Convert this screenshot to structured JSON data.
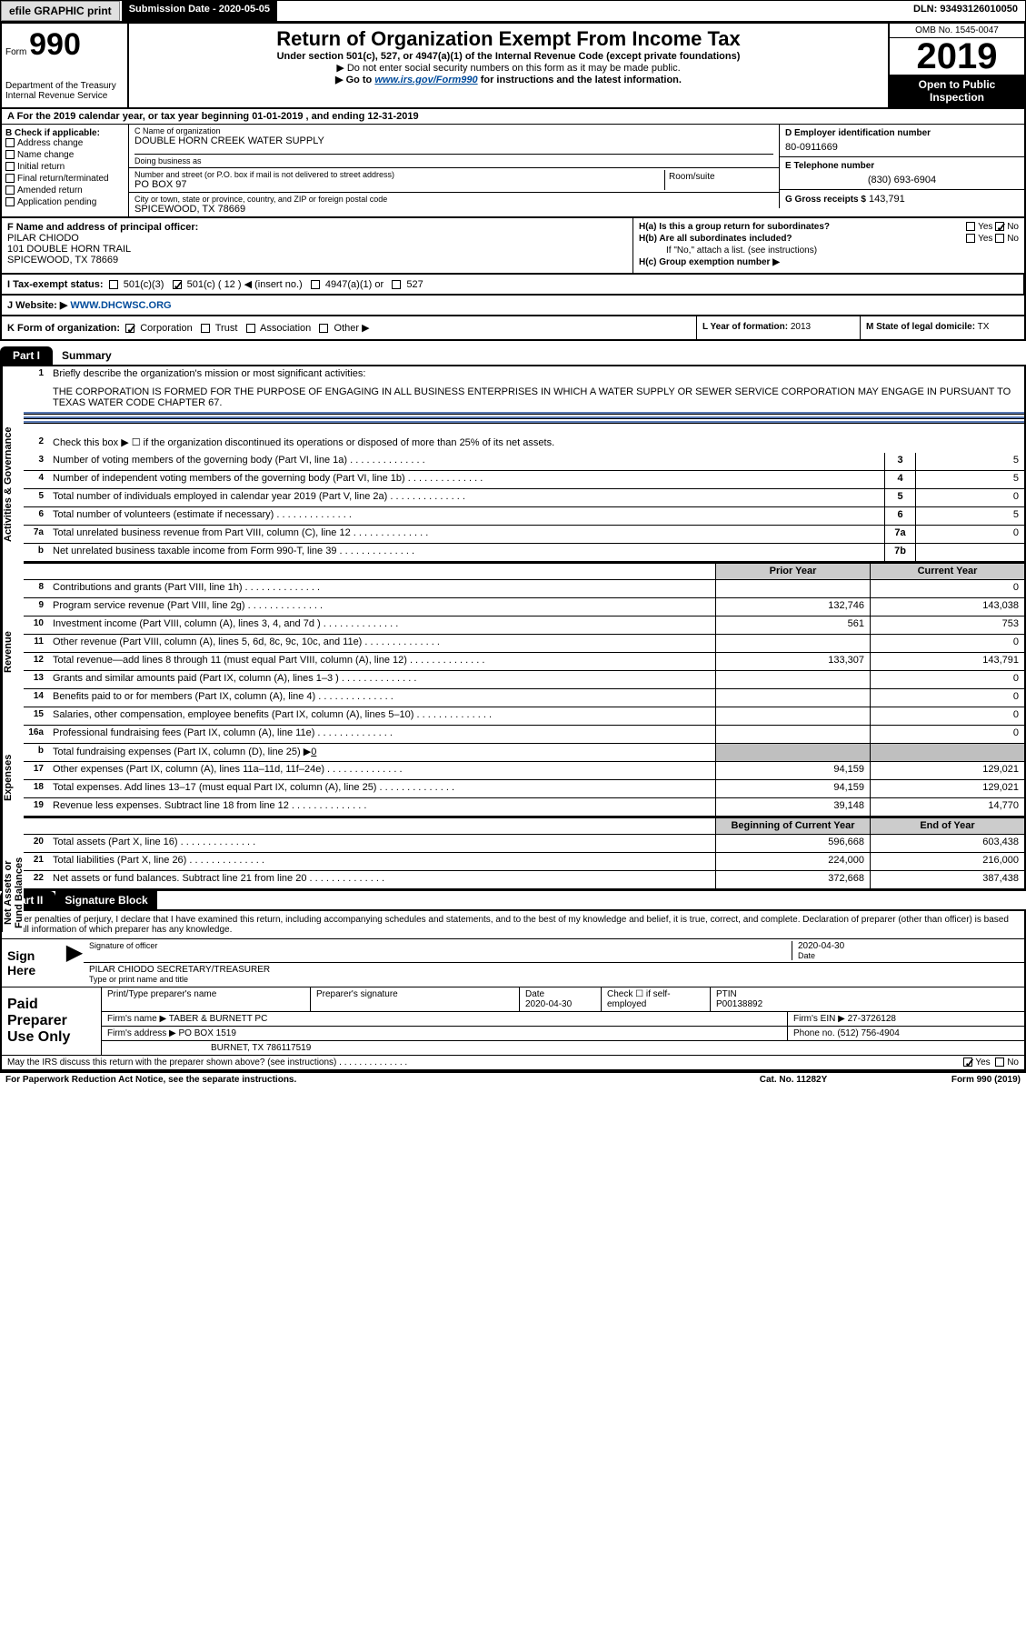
{
  "topbar": {
    "efile_btn": "efile GRAPHIC print",
    "submission_label": "Submission Date - 2020-05-05",
    "dln": "DLN: 93493126010050"
  },
  "header": {
    "form_word": "Form",
    "form_num": "990",
    "dept": "Department of the Treasury\nInternal Revenue Service",
    "title": "Return of Organization Exempt From Income Tax",
    "sub1": "Under section 501(c), 527, or 4947(a)(1) of the Internal Revenue Code (except private foundations)",
    "sub2": "▶ Do not enter social security numbers on this form as it may be made public.",
    "sub3_pre": "▶ Go to ",
    "sub3_link": "www.irs.gov/Form990",
    "sub3_post": " for instructions and the latest information.",
    "omb": "OMB No. 1545-0047",
    "year": "2019",
    "open": "Open to Public Inspection"
  },
  "a_row": "A For the 2019 calendar year, or tax year beginning 01-01-2019    , and ending 12-31-2019",
  "b": {
    "hdr": "B Check if applicable:",
    "opts": [
      "Address change",
      "Name change",
      "Initial return",
      "Final return/terminated",
      "Amended return",
      "Application pending"
    ]
  },
  "c": {
    "name_lbl": "C Name of organization",
    "name_val": "DOUBLE HORN CREEK WATER SUPPLY",
    "dba_lbl": "Doing business as",
    "street_lbl": "Number and street (or P.O. box if mail is not delivered to street address)",
    "street_val": "PO BOX 97",
    "room_lbl": "Room/suite",
    "city_lbl": "City or town, state or province, country, and ZIP or foreign postal code",
    "city_val": "SPICEWOOD, TX  78669"
  },
  "d": {
    "lbl": "D Employer identification number",
    "val": "80-0911669"
  },
  "e": {
    "lbl": "E Telephone number",
    "val": "(830) 693-6904"
  },
  "g": {
    "lbl": "G Gross receipts $",
    "val": "143,791"
  },
  "f": {
    "lbl": "F  Name and address of principal officer:",
    "name": "PILAR CHIODO",
    "addr1": "101 DOUBLE HORN TRAIL",
    "addr2": "SPICEWOOD, TX  78669"
  },
  "h": {
    "a_lbl": "H(a)  Is this a group return for subordinates?",
    "b_lbl": "H(b)  Are all subordinates included?",
    "note": "If \"No,\" attach a list. (see instructions)",
    "c_lbl": "H(c)  Group exemption number ▶",
    "yes": "Yes",
    "no": "No"
  },
  "i": {
    "lbl": "I   Tax-exempt status:",
    "o1": "501(c)(3)",
    "o2": "501(c) ( 12 ) ◀ (insert no.)",
    "o3": "4947(a)(1) or",
    "o4": "527"
  },
  "j": {
    "lbl": "J   Website: ▶",
    "val": "WWW.DHCWSC.ORG"
  },
  "k": {
    "lbl": "K Form of organization:",
    "o1": "Corporation",
    "o2": "Trust",
    "o3": "Association",
    "o4": "Other ▶"
  },
  "l": {
    "lbl": "L Year of formation:",
    "val": "2013"
  },
  "m": {
    "lbl": "M State of legal domicile:",
    "val": "TX"
  },
  "part1": {
    "tab": "Part I",
    "title": "Summary",
    "side_ag": "Activities & Governance",
    "side_rev": "Revenue",
    "side_exp": "Expenses",
    "side_net": "Net Assets or Fund Balances",
    "q1": "Briefly describe the organization's mission or most significant activities:",
    "q1_val": "THE CORPORATION IS FORMED FOR THE PURPOSE OF ENGAGING IN ALL BUSINESS ENTERPRISES IN WHICH A WATER SUPPLY OR SEWER SERVICE CORPORATION MAY ENGAGE IN PURSUANT TO TEXAS WATER CODE CHAPTER 67.",
    "q2": "Check this box ▶ ☐ if the organization discontinued its operations or disposed of more than 25% of its net assets.",
    "rows_numbered": [
      {
        "n": "3",
        "t": "Number of voting members of the governing body (Part VI, line 1a)",
        "box": "3",
        "v": "5"
      },
      {
        "n": "4",
        "t": "Number of independent voting members of the governing body (Part VI, line 1b)",
        "box": "4",
        "v": "5"
      },
      {
        "n": "5",
        "t": "Total number of individuals employed in calendar year 2019 (Part V, line 2a)",
        "box": "5",
        "v": "0"
      },
      {
        "n": "6",
        "t": "Total number of volunteers (estimate if necessary)",
        "box": "6",
        "v": "5"
      },
      {
        "n": "7a",
        "t": "Total unrelated business revenue from Part VIII, column (C), line 12",
        "box": "7a",
        "v": "0"
      },
      {
        "n": "b",
        "t": "Net unrelated business taxable income from Form 990-T, line 39",
        "box": "7b",
        "v": ""
      }
    ],
    "prior_hdr": "Prior Year",
    "curr_hdr": "Current Year",
    "rev_rows": [
      {
        "n": "8",
        "t": "Contributions and grants (Part VIII, line 1h)",
        "p": "",
        "c": "0"
      },
      {
        "n": "9",
        "t": "Program service revenue (Part VIII, line 2g)",
        "p": "132,746",
        "c": "143,038"
      },
      {
        "n": "10",
        "t": "Investment income (Part VIII, column (A), lines 3, 4, and 7d )",
        "p": "561",
        "c": "753"
      },
      {
        "n": "11",
        "t": "Other revenue (Part VIII, column (A), lines 5, 6d, 8c, 9c, 10c, and 11e)",
        "p": "",
        "c": "0"
      },
      {
        "n": "12",
        "t": "Total revenue—add lines 8 through 11 (must equal Part VIII, column (A), line 12)",
        "p": "133,307",
        "c": "143,791"
      }
    ],
    "exp_rows": [
      {
        "n": "13",
        "t": "Grants and similar amounts paid (Part IX, column (A), lines 1–3 )",
        "p": "",
        "c": "0"
      },
      {
        "n": "14",
        "t": "Benefits paid to or for members (Part IX, column (A), line 4)",
        "p": "",
        "c": "0"
      },
      {
        "n": "15",
        "t": "Salaries, other compensation, employee benefits (Part IX, column (A), lines 5–10)",
        "p": "",
        "c": "0"
      },
      {
        "n": "16a",
        "t": "Professional fundraising fees (Part IX, column (A), line 11e)",
        "p": "",
        "c": "0"
      }
    ],
    "exp_b": {
      "n": "b",
      "t_pre": "Total fundraising expenses (Part IX, column (D), line 25) ▶",
      "t_val": "0"
    },
    "exp_rows2": [
      {
        "n": "17",
        "t": "Other expenses (Part IX, column (A), lines 11a–11d, 11f–24e)",
        "p": "94,159",
        "c": "129,021"
      },
      {
        "n": "18",
        "t": "Total expenses. Add lines 13–17 (must equal Part IX, column (A), line 25)",
        "p": "94,159",
        "c": "129,021"
      },
      {
        "n": "19",
        "t": "Revenue less expenses. Subtract line 18 from line 12",
        "p": "39,148",
        "c": "14,770"
      }
    ],
    "boy_hdr": "Beginning of Current Year",
    "eoy_hdr": "End of Year",
    "net_rows": [
      {
        "n": "20",
        "t": "Total assets (Part X, line 16)",
        "p": "596,668",
        "c": "603,438"
      },
      {
        "n": "21",
        "t": "Total liabilities (Part X, line 26)",
        "p": "224,000",
        "c": "216,000"
      },
      {
        "n": "22",
        "t": "Net assets or fund balances. Subtract line 21 from line 20",
        "p": "372,668",
        "c": "387,438"
      }
    ]
  },
  "part2": {
    "tab": "Part II",
    "title": "Signature Block",
    "decl": "Under penalties of perjury, I declare that I have examined this return, including accompanying schedules and statements, and to the best of my knowledge and belief, it is true, correct, and complete. Declaration of preparer (other than officer) is based on all information of which preparer has any knowledge.",
    "sign_here": "Sign Here",
    "sig_lbl": "Signature of officer",
    "date_lbl": "Date",
    "date_val": "2020-04-30",
    "name_val": "PILAR CHIODO  SECRETARY/TREASURER",
    "name_lbl": "Type or print name and title",
    "paid": "Paid Preparer Use Only",
    "p_name_lbl": "Print/Type preparer's name",
    "p_sig_lbl": "Preparer's signature",
    "p_date_lbl": "Date",
    "p_date_val": "2020-04-30",
    "p_check_lbl": "Check ☐ if self-employed",
    "ptin_lbl": "PTIN",
    "ptin_val": "P00138892",
    "firm_name_lbl": "Firm's name    ▶",
    "firm_name_val": "TABER & BURNETT PC",
    "firm_ein_lbl": "Firm's EIN ▶",
    "firm_ein_val": "27-3726128",
    "firm_addr_lbl": "Firm's address ▶",
    "firm_addr_val": "PO BOX 1519",
    "firm_addr_val2": "BURNET, TX  786117519",
    "phone_lbl": "Phone no.",
    "phone_val": "(512) 756-4904",
    "discuss": "May the IRS discuss this return with the preparer shown above? (see instructions)",
    "yes": "Yes",
    "no": "No"
  },
  "footer": {
    "left": "For Paperwork Reduction Act Notice, see the separate instructions.",
    "mid": "Cat. No. 11282Y",
    "right": "Form 990 (2019)"
  }
}
